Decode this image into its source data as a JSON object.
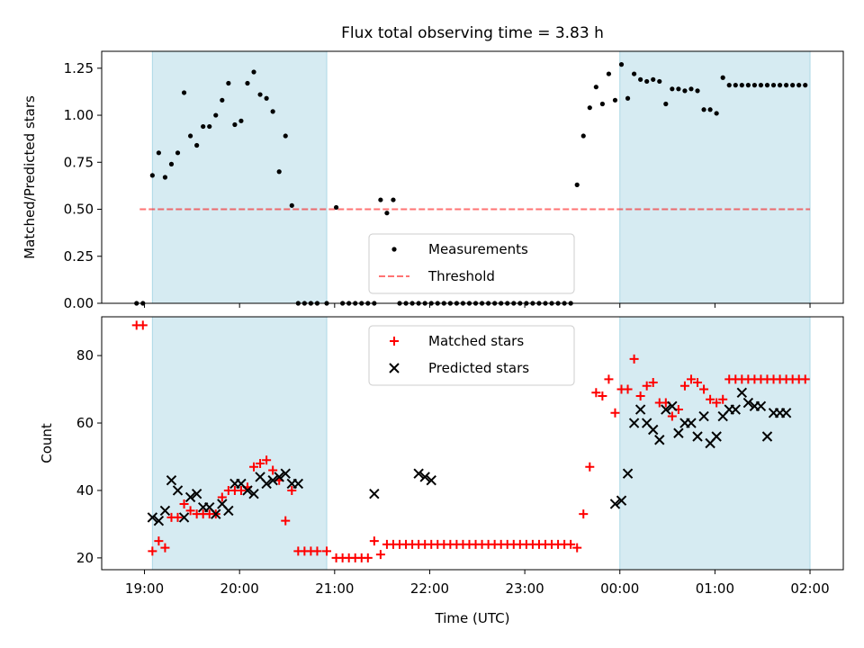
{
  "title": "Flux total observing time = 3.83 h",
  "xlabel": "Time (UTC)",
  "x_ticks": [
    "19:00",
    "20:00",
    "21:00",
    "22:00",
    "23:00",
    "00:00",
    "01:00",
    "02:00"
  ],
  "x_tick_hours": [
    19,
    20,
    21,
    22,
    23,
    24,
    25,
    26
  ],
  "xlim": [
    18.55,
    26.35
  ],
  "colors": {
    "shade": "#add8e6",
    "measurement": "#000000",
    "threshold": "#ff0000",
    "matched": "#ff0000",
    "predicted": "#000000"
  },
  "chart_data": [
    {
      "type": "scatter",
      "ylabel": "Matched/Predicted stars",
      "ylim": [
        0,
        1.34
      ],
      "y_ticks": [
        0.0,
        0.25,
        0.5,
        0.75,
        1.0,
        1.25
      ],
      "y_tick_labels": [
        "0.00",
        "0.25",
        "0.50",
        "0.75",
        "1.00",
        "1.25"
      ],
      "legend_position": "lower-center",
      "shaded_intervals": [
        [
          "19:05",
          "20:55"
        ],
        [
          "00:00",
          "02:00"
        ]
      ],
      "threshold": {
        "name": "Threshold",
        "value": 0.5,
        "x_range": [
          "18:57",
          "02:00"
        ]
      },
      "series": [
        {
          "name": "Measurements",
          "x": [
            "18:55",
            "18:59",
            "19:05",
            "19:09",
            "19:13",
            "19:17",
            "19:21",
            "19:25",
            "19:29",
            "19:33",
            "19:37",
            "19:41",
            "19:45",
            "19:49",
            "19:53",
            "19:57",
            "20:01",
            "20:05",
            "20:09",
            "20:13",
            "20:17",
            "20:21",
            "20:25",
            "20:29",
            "20:33",
            "20:37",
            "20:41",
            "20:45",
            "20:49",
            "20:55",
            "21:01",
            "21:05",
            "21:09",
            "21:13",
            "21:17",
            "21:21",
            "21:25",
            "21:29",
            "21:33",
            "21:37",
            "21:41",
            "21:45",
            "21:49",
            "21:53",
            "21:57",
            "22:01",
            "22:05",
            "22:09",
            "22:13",
            "22:17",
            "22:21",
            "22:25",
            "22:29",
            "22:33",
            "22:37",
            "22:41",
            "22:45",
            "22:49",
            "22:53",
            "22:57",
            "23:01",
            "23:05",
            "23:09",
            "23:13",
            "23:17",
            "23:21",
            "23:25",
            "23:29",
            "23:33",
            "23:37",
            "23:41",
            "23:45",
            "23:49",
            "23:53",
            "23:57",
            "00:01",
            "00:05",
            "00:09",
            "00:13",
            "00:17",
            "00:21",
            "00:25",
            "00:29",
            "00:33",
            "00:37",
            "00:41",
            "00:45",
            "00:49",
            "00:53",
            "00:57",
            "01:01",
            "01:05",
            "01:09",
            "01:13",
            "01:17",
            "01:21",
            "01:25",
            "01:29",
            "01:33",
            "01:37",
            "01:41",
            "01:45",
            "01:49",
            "01:53",
            "01:57"
          ],
          "y": [
            0.0,
            0.0,
            0.68,
            0.8,
            0.67,
            0.74,
            0.8,
            1.12,
            0.89,
            0.84,
            0.94,
            0.94,
            1.0,
            1.08,
            1.17,
            0.95,
            0.97,
            1.17,
            1.23,
            1.11,
            1.09,
            1.02,
            0.7,
            0.89,
            0.52,
            0.0,
            0.0,
            0.0,
            0.0,
            0.0,
            0.51,
            0.0,
            0.0,
            0.0,
            0.0,
            0.0,
            0.0,
            0.55,
            0.48,
            0.55,
            0.0,
            0.0,
            0.0,
            0.0,
            0.0,
            0.0,
            0.0,
            0.0,
            0.0,
            0.0,
            0.0,
            0.0,
            0.0,
            0.0,
            0.0,
            0.0,
            0.0,
            0.0,
            0.0,
            0.0,
            0.0,
            0.0,
            0.0,
            0.0,
            0.0,
            0.0,
            0.0,
            0.0,
            0.63,
            0.89,
            1.04,
            1.15,
            1.06,
            1.22,
            1.08,
            1.27,
            1.09,
            1.22,
            1.19,
            1.18,
            1.19,
            1.18,
            1.06,
            1.14,
            1.14,
            1.13,
            1.14,
            1.13,
            1.03,
            1.03,
            1.01,
            1.2,
            1.16,
            1.16,
            1.16,
            1.16,
            1.16,
            1.16,
            1.16,
            1.16,
            1.16,
            1.16,
            1.16,
            1.16,
            1.16
          ]
        }
      ]
    },
    {
      "type": "scatter",
      "ylabel": "Count",
      "ylim": [
        16.5,
        91.5
      ],
      "y_ticks": [
        20,
        40,
        60,
        80
      ],
      "y_tick_labels": [
        "20",
        "40",
        "60",
        "80"
      ],
      "legend_position": "upper-center",
      "shaded_intervals": [
        [
          "19:05",
          "20:55"
        ],
        [
          "00:00",
          "02:00"
        ]
      ],
      "series": [
        {
          "name": "Matched stars",
          "marker": "plus",
          "x": [
            "18:55",
            "18:59",
            "19:05",
            "19:09",
            "19:13",
            "19:17",
            "19:21",
            "19:25",
            "19:29",
            "19:33",
            "19:37",
            "19:41",
            "19:45",
            "19:49",
            "19:53",
            "19:57",
            "20:01",
            "20:05",
            "20:09",
            "20:13",
            "20:17",
            "20:21",
            "20:25",
            "20:29",
            "20:33",
            "20:37",
            "20:41",
            "20:45",
            "20:49",
            "20:55",
            "21:01",
            "21:05",
            "21:09",
            "21:13",
            "21:17",
            "21:21",
            "21:25",
            "21:29",
            "21:33",
            "21:37",
            "21:41",
            "21:45",
            "21:49",
            "21:53",
            "21:57",
            "22:01",
            "22:05",
            "22:09",
            "22:13",
            "22:17",
            "22:21",
            "22:25",
            "22:29",
            "22:33",
            "22:37",
            "22:41",
            "22:45",
            "22:49",
            "22:53",
            "22:57",
            "23:01",
            "23:05",
            "23:09",
            "23:13",
            "23:17",
            "23:21",
            "23:25",
            "23:29",
            "23:33",
            "23:37",
            "23:41",
            "23:45",
            "23:49",
            "23:53",
            "23:57",
            "00:01",
            "00:05",
            "00:09",
            "00:13",
            "00:17",
            "00:21",
            "00:25",
            "00:29",
            "00:33",
            "00:37",
            "00:41",
            "00:45",
            "00:49",
            "00:53",
            "00:57",
            "01:01",
            "01:05",
            "01:09",
            "01:13",
            "01:17",
            "01:21",
            "01:25",
            "01:29",
            "01:33",
            "01:37",
            "01:41",
            "01:45",
            "01:49",
            "01:53",
            "01:57"
          ],
          "y": [
            89,
            89,
            22,
            25,
            23,
            32,
            32,
            36,
            34,
            33,
            33,
            33,
            33,
            38,
            40,
            40,
            40,
            41,
            47,
            48,
            49,
            46,
            43,
            31,
            40,
            22,
            22,
            22,
            22,
            22,
            20,
            20,
            20,
            20,
            20,
            20,
            25,
            21,
            24,
            24,
            24,
            24,
            24,
            24,
            24,
            24,
            24,
            24,
            24,
            24,
            24,
            24,
            24,
            24,
            24,
            24,
            24,
            24,
            24,
            24,
            24,
            24,
            24,
            24,
            24,
            24,
            24,
            24,
            23,
            33,
            47,
            69,
            68,
            73,
            63,
            70,
            70,
            79,
            68,
            71,
            72,
            66,
            66,
            62,
            64,
            71,
            73,
            72,
            70,
            67,
            66,
            67,
            73,
            73,
            73,
            73,
            73,
            73,
            73,
            73,
            73,
            73,
            73,
            73,
            73
          ]
        },
        {
          "name": "Predicted stars",
          "marker": "x",
          "x": [
            "19:05",
            "19:09",
            "19:13",
            "19:17",
            "19:21",
            "19:25",
            "19:29",
            "19:33",
            "19:37",
            "19:41",
            "19:45",
            "19:49",
            "19:53",
            "19:57",
            "20:01",
            "20:05",
            "20:09",
            "20:13",
            "20:17",
            "20:21",
            "20:25",
            "20:29",
            "20:33",
            "20:37",
            "21:25",
            "21:53",
            "21:57",
            "22:01",
            "23:57",
            "00:01",
            "00:05",
            "00:09",
            "00:13",
            "00:17",
            "00:21",
            "00:25",
            "00:29",
            "00:33",
            "00:37",
            "00:41",
            "00:45",
            "00:49",
            "00:53",
            "00:57",
            "01:01",
            "01:05",
            "01:09",
            "01:13",
            "01:17",
            "01:21",
            "01:25",
            "01:29",
            "01:33",
            "01:37",
            "01:41",
            "01:45"
          ],
          "y": [
            32,
            31,
            34,
            43,
            40,
            32,
            38,
            39,
            35,
            35,
            33,
            36,
            34,
            42,
            42,
            40,
            39,
            44,
            42,
            43,
            44,
            45,
            42,
            42,
            39,
            45,
            44,
            43,
            36,
            37,
            45,
            60,
            64,
            60,
            58,
            55,
            64,
            65,
            57,
            60,
            60,
            56,
            62,
            54,
            56,
            62,
            64,
            64,
            69,
            66,
            65,
            65,
            56,
            63,
            63,
            63
          ]
        }
      ]
    }
  ]
}
